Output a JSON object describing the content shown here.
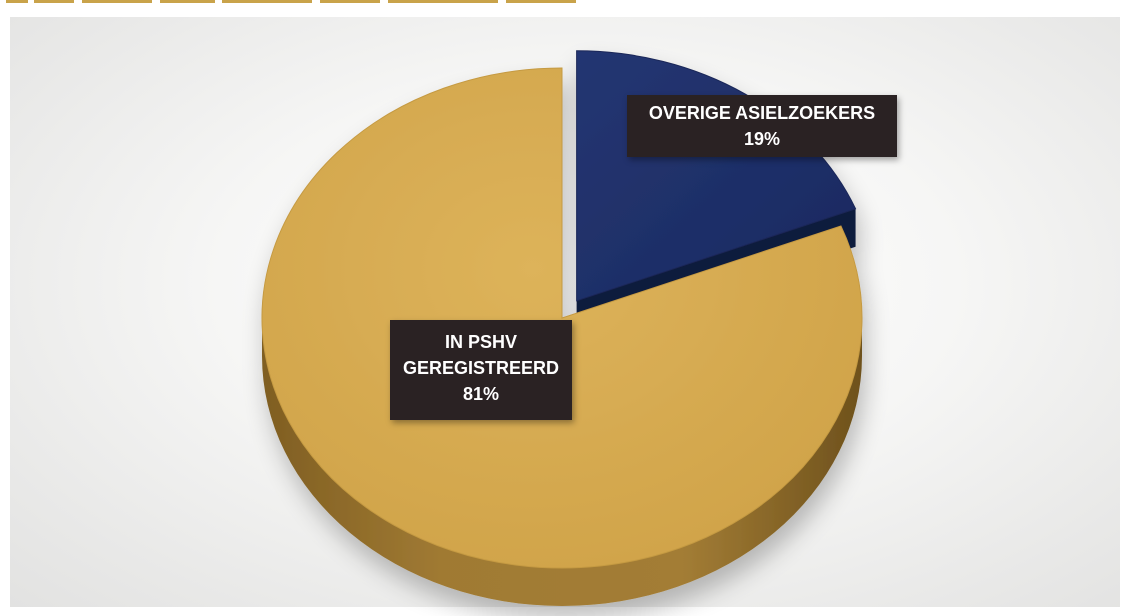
{
  "colors": {
    "gold": "#d4a84b",
    "gold_side": "#9c7630",
    "navy": "#1f2f6b",
    "navy_side": "#131d46",
    "label_bg": "#2a2223",
    "label_text": "#ffffff"
  },
  "chart_data": {
    "type": "pie",
    "title": "",
    "slices": [
      {
        "name": "OVERIGE ASIELZOEKERS",
        "value": 19,
        "label": "19%",
        "color": "#1f2f6b",
        "exploded": true
      },
      {
        "name_lines": [
          "IN PSHV",
          "GEREGISTREERD"
        ],
        "value": 81,
        "label": "81%",
        "color": "#d4a84b",
        "exploded": false
      }
    ],
    "three_d": true,
    "legend": "none"
  }
}
